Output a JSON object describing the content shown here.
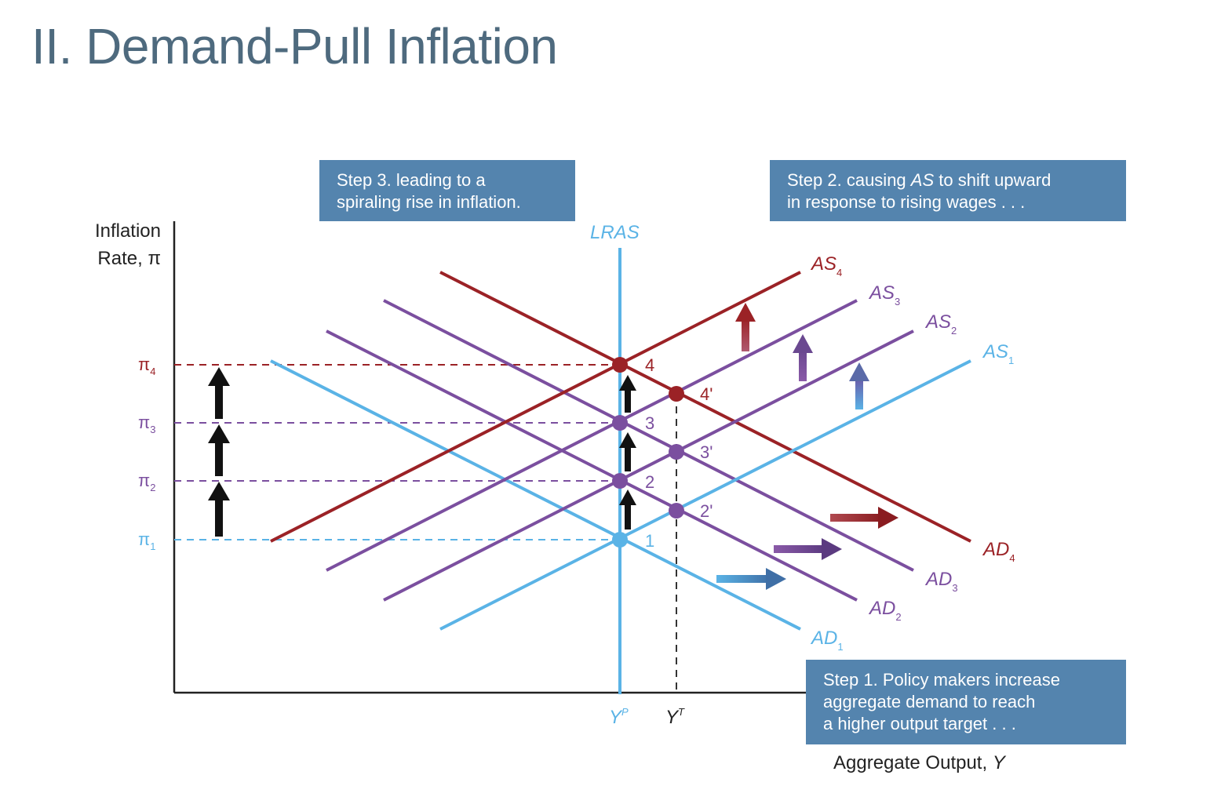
{
  "title": "II. Demand-Pull Inflation",
  "callouts": {
    "step3": [
      "Step 3. leading to a",
      "spiraling rise in inflation."
    ],
    "step2": {
      "line1_pre": "Step 2. causing ",
      "line1_em": "AS",
      "line1_post": " to shift upward",
      "line2": "in response to rising wages . . ."
    },
    "step1": [
      "Step 1. Policy makers increase",
      "aggregate demand to reach",
      "a higher output target . . ."
    ]
  },
  "axes": {
    "y_label_line1": "Inflation",
    "y_label_line2": "Rate, π",
    "x_label_pre": "Aggregate Output, ",
    "x_label_em": "Y",
    "x_ticks": [
      {
        "base": "Y",
        "sup": "P",
        "color": "#5ab3e6"
      },
      {
        "base": "Y",
        "sup": "T",
        "color": "#222222"
      }
    ],
    "y_ticks": [
      {
        "base": "π",
        "sub": "4",
        "color": "#9b2226"
      },
      {
        "base": "π",
        "sub": "3",
        "color": "#7b4f9f"
      },
      {
        "base": "π",
        "sub": "2",
        "color": "#7b4f9f"
      },
      {
        "base": "π",
        "sub": "1",
        "color": "#5ab3e6"
      }
    ]
  },
  "curves": {
    "lras": {
      "label": "LRAS",
      "color": "#5ab3e6"
    },
    "as": [
      {
        "base": "AS",
        "sub": "4",
        "color": "#9b2226"
      },
      {
        "base": "AS",
        "sub": "3",
        "color": "#7b4f9f"
      },
      {
        "base": "AS",
        "sub": "2",
        "color": "#7b4f9f"
      },
      {
        "base": "AS",
        "sub": "1",
        "color": "#5ab3e6"
      }
    ],
    "ad": [
      {
        "base": "AD",
        "sub": "4",
        "color": "#9b2226"
      },
      {
        "base": "AD",
        "sub": "3",
        "color": "#7b4f9f"
      },
      {
        "base": "AD",
        "sub": "2",
        "color": "#7b4f9f"
      },
      {
        "base": "AD",
        "sub": "1",
        "color": "#5ab3e6"
      }
    ]
  },
  "points": [
    {
      "label": "1",
      "color": "#5ab3e6"
    },
    {
      "label": "2",
      "color": "#7b4f9f"
    },
    {
      "label": "3",
      "color": "#7b4f9f"
    },
    {
      "label": "4",
      "color": "#9b2226"
    },
    {
      "label": "2'",
      "color": "#7b4f9f"
    },
    {
      "label": "3'",
      "color": "#7b4f9f"
    },
    {
      "label": "4'",
      "color": "#9b2226"
    }
  ],
  "colors": {
    "blue": "#5ab3e6",
    "purple": "#7b4f9f",
    "red": "#9b2226",
    "callout_bg": "#5484ae",
    "title": "#4e6a7e"
  }
}
